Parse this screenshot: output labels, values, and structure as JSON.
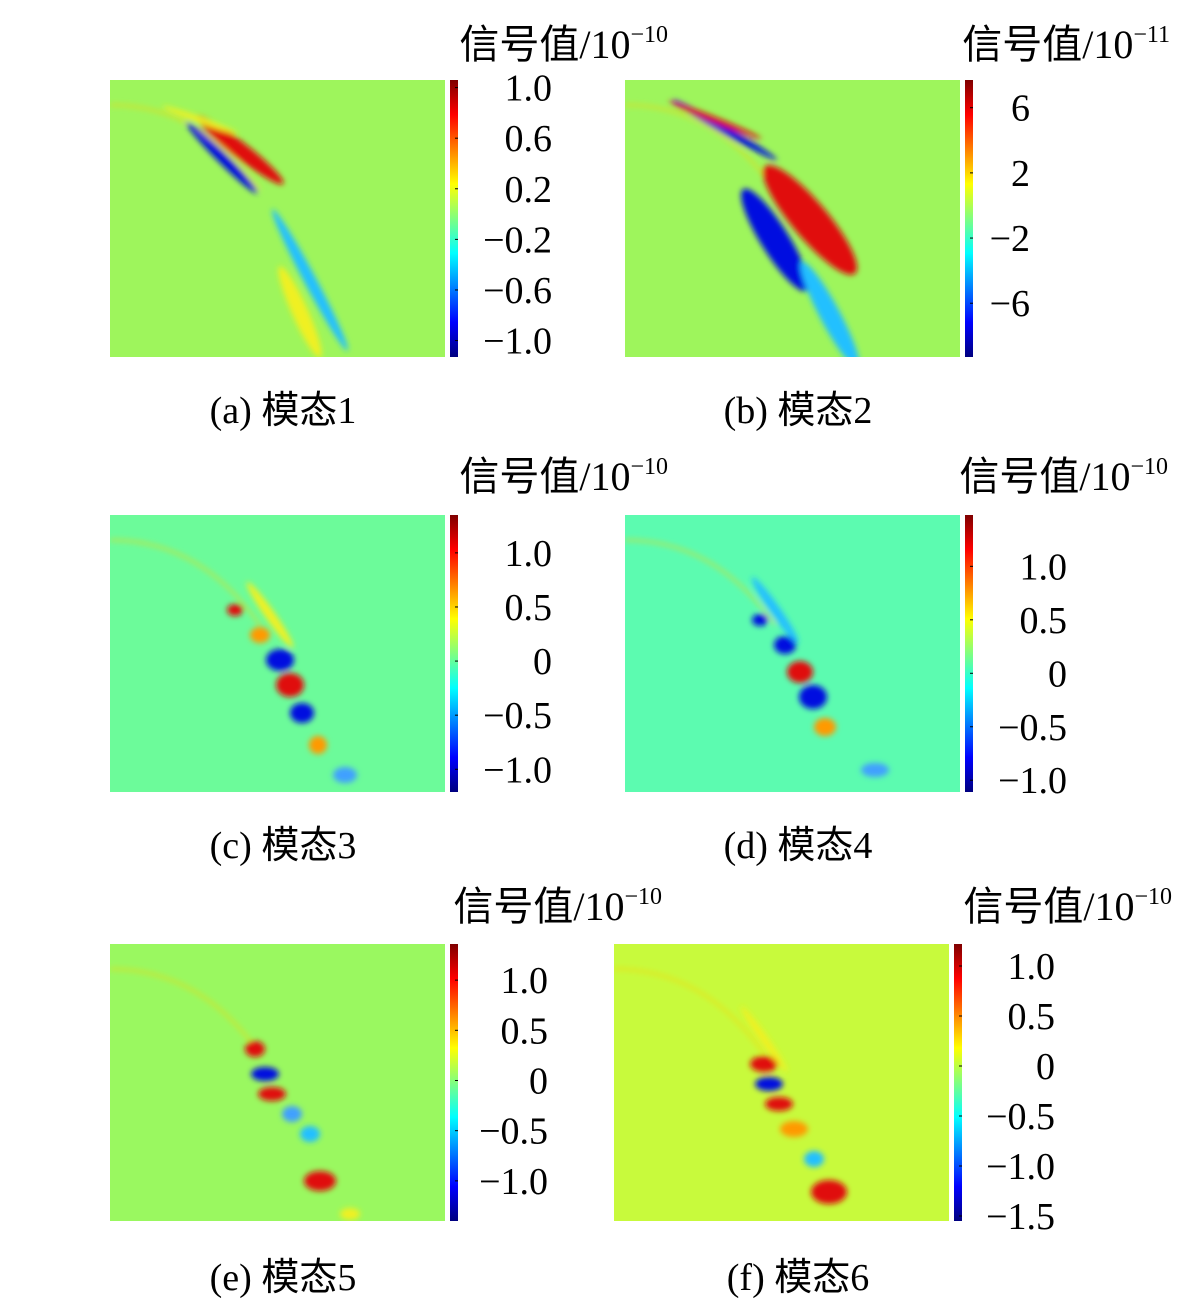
{
  "chart_data": [
    {
      "type": "heatmap",
      "caption": "(a) 模态1",
      "colorbar_label": "信号值/10",
      "colorbar_exponent": "−10",
      "background_color": "#9ef55c",
      "clim": [
        -1.13,
        1.06
      ],
      "colorbar_ticks": [
        {
          "value": 1.0,
          "label": "1.0"
        },
        0.6,
        0.2,
        {
          "value": -0.2,
          "label": "−0.2"
        },
        {
          "value": -0.6,
          "label": "−0.6"
        },
        {
          "value": -1.0,
          "label": "−1.0"
        }
      ]
    },
    {
      "type": "heatmap",
      "caption": "(b) 模态2",
      "colorbar_label": "信号值/10",
      "colorbar_exponent": "−11",
      "background_color": "#9ef55c",
      "clim": [
        -9.3,
        7.7
      ],
      "colorbar_ticks": [
        6,
        2,
        {
          "value": -2,
          "label": "−2"
        },
        {
          "value": -6,
          "label": "−6"
        }
      ]
    },
    {
      "type": "heatmap",
      "caption": "(c) 模态3",
      "colorbar_label": "信号值/10",
      "colorbar_exponent": "−10",
      "background_color": "#6cfb9a",
      "clim": [
        -1.21,
        1.35
      ],
      "colorbar_ticks": [
        {
          "value": 1.0,
          "label": "1.0"
        },
        0.5,
        0,
        {
          "value": -0.5,
          "label": "−0.5"
        },
        {
          "value": -1.0,
          "label": "−1.0"
        }
      ]
    },
    {
      "type": "heatmap",
      "caption": "(d) 模态4",
      "colorbar_label": "信号值/10",
      "colorbar_exponent": "−10",
      "background_color": "#5cfbb0",
      "clim": [
        -1.11,
        1.48
      ],
      "colorbar_ticks": [
        {
          "value": 1.0,
          "label": "1.0"
        },
        0.5,
        0,
        {
          "value": -0.5,
          "label": "−0.5"
        },
        {
          "value": -1.0,
          "label": "−1.0"
        }
      ]
    },
    {
      "type": "heatmap",
      "caption": "(e) 模态5",
      "colorbar_label": "信号值/10",
      "colorbar_exponent": "−10",
      "background_color": "#9af860",
      "clim": [
        -1.4,
        1.36
      ],
      "colorbar_ticks": [
        {
          "value": 1.0,
          "label": "1.0"
        },
        0.5,
        0,
        {
          "value": -0.5,
          "label": "−0.5"
        },
        {
          "value": -1.0,
          "label": "−1.0"
        }
      ]
    },
    {
      "type": "heatmap",
      "caption": "(f) 模态6",
      "colorbar_label": "信号值/10",
      "colorbar_exponent": "−10",
      "background_color": "#c8fa3c",
      "clim": [
        -1.55,
        1.22
      ],
      "colorbar_ticks": [
        {
          "value": 1.0,
          "label": "1.0"
        },
        0.5,
        0,
        {
          "value": -0.5,
          "label": "−0.5"
        },
        {
          "value": -1.0,
          "label": "−1.0"
        },
        {
          "value": -1.5,
          "label": "−1.5"
        }
      ]
    }
  ]
}
